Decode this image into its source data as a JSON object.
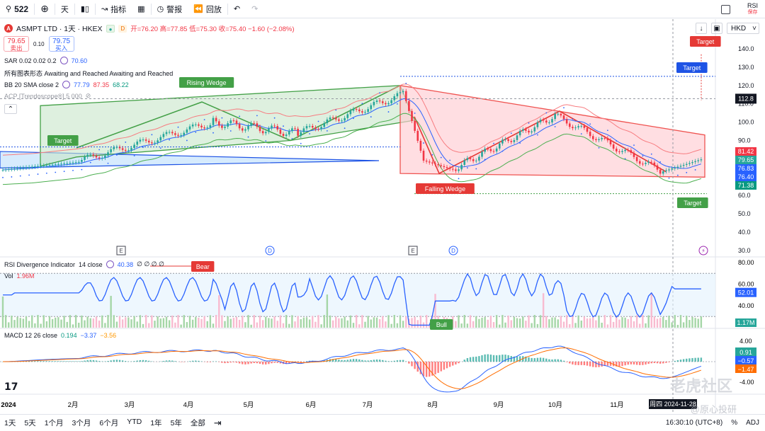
{
  "toolbar": {
    "symbol": "522",
    "interval": "天",
    "indicators_label": "指标",
    "alert_label": "警报",
    "replay_label": "回放",
    "rsi_label": "RSI",
    "rsi_sub": "保存"
  },
  "legend": {
    "symbol_title": "ASMPT LTD · 1天 · HKEX",
    "chip_delay": "D",
    "ohlc_label": "开=76.20 高=77.85 低=75.30 收=75.40 −1.60 (−2.08%)",
    "sell_price": "79.65",
    "sell_label": "卖出",
    "spread": "0.10",
    "buy_price": "79.75",
    "buy_label": "买入",
    "sar": "SAR 0.02 0.02 0.2",
    "sar_value": "70.60",
    "patterns": "所有图表形态 Awaiting and Reached Awaiting and Reached",
    "bb": "BB 20 SMA close 2",
    "bb_v1": "77.79",
    "bb_v2": "87.35",
    "bb_v3": "68.22",
    "acp": "ACP [Trendoscope®] 5 000"
  },
  "right_controls": {
    "currency": "HKD"
  },
  "price_axis": {
    "ticks": [
      "140.0",
      "130.0",
      "120.0",
      "110.0",
      "100.0",
      "90.0",
      "80.0",
      "70.0",
      "60.0",
      "50.0",
      "40.0",
      "30.0"
    ],
    "crosshair_value": "112.8",
    "labels": [
      {
        "text": "81.42",
        "color": "#f23645"
      },
      {
        "text": "79.65",
        "color": "#26a69a"
      },
      {
        "text": "76.83",
        "color": "#2962ff"
      },
      {
        "text": "76.40",
        "color": "#2962ff"
      },
      {
        "text": "71.38",
        "color": "#089981"
      }
    ]
  },
  "pattern_labels": {
    "rising_wedge": "Rising Wedge",
    "falling_wedge": "Falling Wedge",
    "target": "Target"
  },
  "events": {
    "earnings": "E",
    "dividend": "D"
  },
  "rsi_pane": {
    "title": "RSI Divergence Indicator",
    "params": "14 close",
    "value": "40.38",
    "zeros": "∅ ∅ ∅ ∅",
    "bear_label": "Bear",
    "bull_label": "Bull",
    "ticks": [
      "80.00",
      "60.00",
      "40.00"
    ],
    "last_value": "52.01",
    "vol_label": "Vol",
    "vol_value": "1.96M",
    "vol_last": "1.17M"
  },
  "macd_pane": {
    "title": "MACD 12 26 close",
    "v1": "0.194",
    "v2": "−3.37",
    "v3": "−3.56",
    "ticks": [
      "4.00",
      "0.00",
      "-4.00"
    ],
    "labels": [
      {
        "text": "0.91",
        "color": "#26a69a"
      },
      {
        "text": "−0.57",
        "color": "#2962ff"
      },
      {
        "text": "−1.47",
        "color": "#ff6d00"
      }
    ]
  },
  "time_axis": {
    "labels": [
      "2024",
      "2月",
      "3月",
      "4月",
      "5月",
      "6月",
      "7月",
      "8月",
      "9月",
      "10月",
      "11月"
    ],
    "crosshair_date": "周四 2024-11-28"
  },
  "bottombar": {
    "ranges": [
      "1天",
      "5天",
      "1个月",
      "3个月",
      "6个月",
      "YTD",
      "1年",
      "5年",
      "全部"
    ],
    "clock": "16:30:10 (UTC+8)",
    "adj": "ADJ",
    "pct": "%"
  },
  "watermark": "老虎社区",
  "watermark_sub": "@原心投研",
  "colors": {
    "up": "#26a69a",
    "down": "#f23645",
    "rising_wedge_fill": "#c8e6c9",
    "falling_wedge_fill": "#ffcdd2",
    "blue_triangle_fill": "#bbdefb"
  }
}
